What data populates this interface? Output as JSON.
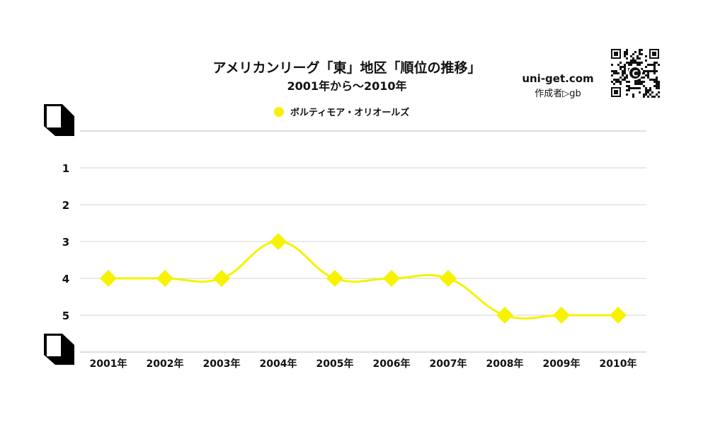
{
  "chart_data": {
    "type": "line",
    "title": "アメリカンリーグ「東」地区「順位の推移」",
    "subtitle": "2001年から〜2010年",
    "categories": [
      "2001年",
      "2002年",
      "2003年",
      "2004年",
      "2005年",
      "2006年",
      "2007年",
      "2008年",
      "2009年",
      "2010年"
    ],
    "series": [
      {
        "name": "ボルティモア・オリオールズ",
        "values": [
          4,
          4,
          4,
          3,
          4,
          4,
          4,
          5,
          5,
          5
        ],
        "color": "#f6f200"
      }
    ],
    "y_ticks": [
      "1",
      "2",
      "3",
      "4",
      "5"
    ],
    "ylim": [
      0,
      6
    ],
    "y_inverted": true,
    "grid": true,
    "legend_position": "top-center"
  },
  "branding": {
    "site": "uni-get.com",
    "author": "作成者▷gb",
    "qr_center_letter": "C"
  }
}
